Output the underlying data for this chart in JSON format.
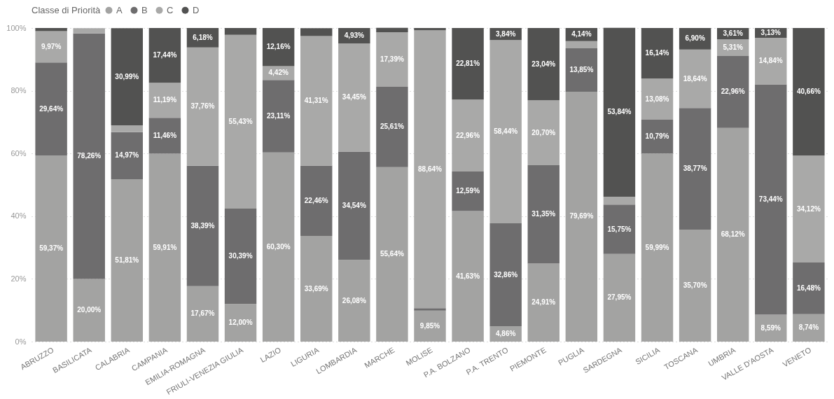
{
  "chart_data": {
    "type": "bar",
    "stacked": true,
    "legend_title": "Classe di Priorità",
    "legend": "top",
    "grid": "y",
    "ylim": [
      0,
      100
    ],
    "yticks": [
      {
        "value": 0,
        "label": "0%"
      },
      {
        "value": 20,
        "label": "20%"
      },
      {
        "value": 40,
        "label": "40%"
      },
      {
        "value": 60,
        "label": "60%"
      },
      {
        "value": 80,
        "label": "80%"
      },
      {
        "value": 100,
        "label": "100%"
      }
    ],
    "categories": [
      "ABRUZZO",
      "BASILICATA",
      "CALABRIA",
      "CAMPANIA",
      "EMILIA-ROMAGNA",
      "FRIULI-VENEZIA GIULIA",
      "LAZIO",
      "LIGURIA",
      "LOMBARDIA",
      "MARCHE",
      "MOLISE",
      "P.A. BOLZANO",
      "P.A. TRENTO",
      "PIEMONTE",
      "PUGLIA",
      "SARDEGNA",
      "SICILIA",
      "TOSCANA",
      "UMBRIA",
      "VALLE D'AOSTA",
      "VENETO"
    ],
    "series": [
      {
        "name": "A",
        "color": "#a3a3a2",
        "values": [
          59.37,
          20.0,
          51.81,
          59.91,
          17.67,
          12.0,
          60.3,
          33.69,
          26.08,
          55.64,
          9.85,
          41.63,
          4.86,
          24.91,
          79.69,
          27.95,
          59.99,
          35.7,
          68.12,
          8.59,
          8.74
        ],
        "value_labels": [
          "59,37%",
          "20,00%",
          "51,81%",
          "59,91%",
          "17,67%",
          "12,00%",
          "60,30%",
          "33,69%",
          "26,08%",
          "55,64%",
          "9,85%",
          "41,63%",
          "4,86%",
          "24,91%",
          "79,69%",
          "27,95%",
          "59,99%",
          "35,70%",
          "68,12%",
          "8,59%",
          "8,74%"
        ]
      },
      {
        "name": "B",
        "color": "#6e6d6e",
        "values": [
          29.64,
          78.26,
          14.97,
          11.46,
          38.39,
          30.39,
          23.11,
          22.46,
          34.54,
          25.61,
          0.8,
          12.59,
          32.86,
          31.35,
          13.85,
          15.75,
          10.79,
          38.77,
          22.96,
          73.44,
          16.48
        ],
        "value_labels": [
          "29,64%",
          "78,26%",
          "14,97%",
          "11,46%",
          "38,39%",
          "30,39%",
          "23,11%",
          "22,46%",
          "34,54%",
          "25,61%",
          null,
          "12,59%",
          "32,86%",
          "31,35%",
          "13,85%",
          "15,75%",
          "10,79%",
          "38,77%",
          "22,96%",
          "73,44%",
          "16,48%"
        ]
      },
      {
        "name": "C",
        "color": "#a9a9a8",
        "values": [
          9.97,
          1.7,
          2.2,
          11.19,
          37.76,
          55.43,
          4.42,
          41.31,
          34.45,
          17.39,
          88.64,
          22.96,
          58.44,
          20.7,
          2.3,
          2.5,
          13.08,
          18.64,
          5.31,
          14.84,
          34.12
        ],
        "value_labels": [
          "9,97%",
          null,
          null,
          "11,19%",
          "37,76%",
          "55,43%",
          "4,42%",
          "41,31%",
          "34,45%",
          "17,39%",
          "88,64%",
          "22,96%",
          "58,44%",
          "20,70%",
          null,
          null,
          "13,08%",
          "18,64%",
          "5,31%",
          "14,84%",
          "34,12%"
        ]
      },
      {
        "name": "D",
        "color": "#525251",
        "values": [
          1.0,
          null,
          30.99,
          17.44,
          6.18,
          2.2,
          12.16,
          2.5,
          4.93,
          1.4,
          0.7,
          22.81,
          3.84,
          23.04,
          4.14,
          53.84,
          16.14,
          6.9,
          3.61,
          3.13,
          40.66
        ],
        "value_labels": [
          null,
          null,
          "30,99%",
          "17,44%",
          "6,18%",
          null,
          "12,16%",
          null,
          "4,93%",
          null,
          null,
          "22,81%",
          "3,84%",
          "23,04%",
          "4,14%",
          "53,84%",
          "16,14%",
          "6,90%",
          "3,61%",
          "3,13%",
          "40,66%"
        ]
      }
    ]
  }
}
